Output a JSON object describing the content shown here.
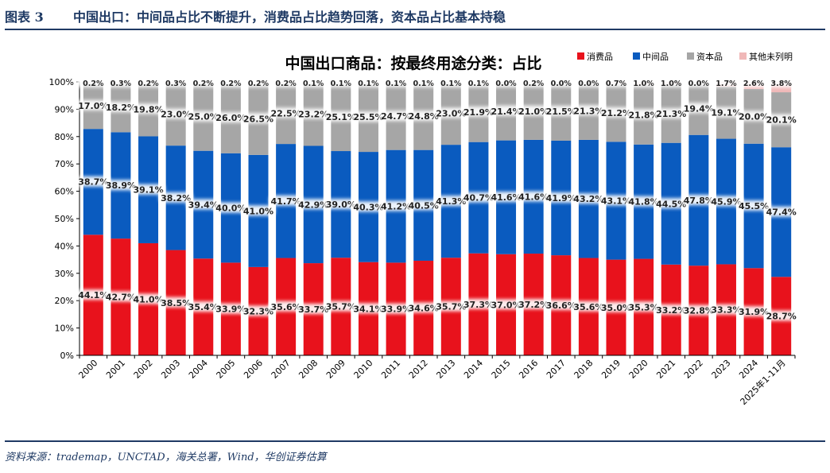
{
  "header": {
    "figure_label": "图表 3",
    "figure_title": "中国出口：中间品占比不断提升，消费品占比趋势回落，资本品占比基本持稳"
  },
  "footer": {
    "source": "资料来源：trademap，UNCTAD，海关总署，Wind，华创证券估算"
  },
  "colors": {
    "consumer": "#e8121c",
    "intermediate": "#0a5bbf",
    "capital": "#a6a6a6",
    "other": "#f0b8b8",
    "header_text": "#1f3a64"
  },
  "chart_data": {
    "type": "bar",
    "stacked": true,
    "title": "中国出口商品：按最终用途分类：占比",
    "categories": [
      "2000",
      "2001",
      "2002",
      "2003",
      "2004",
      "2005",
      "2006",
      "2007",
      "2008",
      "2009",
      "2010",
      "2011",
      "2012",
      "2013",
      "2014",
      "2015",
      "2016",
      "2017",
      "2018",
      "2019",
      "2020",
      "2021",
      "2022",
      "2023",
      "2024",
      "2025年1-11月"
    ],
    "series": [
      {
        "name": "消费品",
        "values": [
          44.1,
          42.7,
          41.0,
          38.5,
          35.4,
          33.9,
          32.3,
          35.6,
          33.7,
          35.7,
          34.1,
          33.9,
          34.6,
          35.7,
          37.3,
          37.0,
          37.2,
          36.6,
          35.6,
          35.0,
          35.3,
          33.2,
          32.8,
          33.3,
          31.9,
          28.7
        ],
        "labels": [
          "44.1%",
          "42.7%",
          "41.0%",
          "38.5%",
          "35.4%",
          "33.9%",
          "32.3%",
          "35.6%",
          "33.7%",
          "35.7%",
          "34.1%",
          "33.9%",
          "34.6%",
          "35.7%",
          "37.3%",
          "37.0%",
          "37.2%",
          "36.6%",
          "35.6%",
          "35.0%",
          "35.3%",
          "33.2%",
          "32.8%",
          "33.3%",
          "31.9%",
          "28.7%"
        ]
      },
      {
        "name": "中间品",
        "values": [
          38.7,
          38.9,
          39.1,
          38.2,
          39.4,
          40.0,
          41.0,
          41.7,
          42.9,
          39.0,
          40.3,
          41.2,
          40.5,
          41.3,
          40.7,
          41.6,
          41.6,
          41.9,
          43.2,
          43.1,
          41.8,
          44.5,
          47.8,
          45.9,
          45.5,
          47.4
        ],
        "labels": [
          "38.7%",
          "38.9%",
          "39.1%",
          "38.2%",
          "39.4%",
          "40.0%",
          "41.0%",
          "41.7%",
          "42.9%",
          "39.0%",
          "40.3%",
          "41.2%",
          "40.5%",
          "41.3%",
          "40.7%",
          "41.6%",
          "41.6%",
          "41.9%",
          "43.2%",
          "43.1%",
          "41.8%",
          "44.5%",
          "47.8%",
          "45.9%",
          "45.5%",
          "47.4%"
        ]
      },
      {
        "name": "资本品",
        "values": [
          17.0,
          18.2,
          19.8,
          23.0,
          25.0,
          26.0,
          26.5,
          22.5,
          23.2,
          25.1,
          25.5,
          24.7,
          24.8,
          23.0,
          21.9,
          21.4,
          21.0,
          21.5,
          21.3,
          21.2,
          21.8,
          21.3,
          19.4,
          19.1,
          20.0,
          20.1
        ],
        "labels": [
          "17.0%",
          "18.2%",
          "19.8%",
          "23.0%",
          "25.0%",
          "26.0%",
          "26.5%",
          "22.5%",
          "23.2%",
          "25.1%",
          "25.5%",
          "24.7%",
          "24.8%",
          "23.0%",
          "21.9%",
          "21.4%",
          "21.0%",
          "21.5%",
          "21.3%",
          "21.2%",
          "21.8%",
          "21.3%",
          "19.4%",
          "19.1%",
          "20.0%",
          "20.1%"
        ]
      },
      {
        "name": "其他未列明",
        "values": [
          0.2,
          0.3,
          0.2,
          0.3,
          0.2,
          0.2,
          0.2,
          0.2,
          0.1,
          0.1,
          0.1,
          0.1,
          0.1,
          0.1,
          0.1,
          0.0,
          0.2,
          0.0,
          0.0,
          0.7,
          1.0,
          1.0,
          0.0,
          1.7,
          2.6,
          3.8
        ],
        "labels": [
          "0.2%",
          "0.3%",
          "0.2%",
          "0.3%",
          "0.2%",
          "0.2%",
          "0.2%",
          "0.2%",
          "0.1%",
          "0.1%",
          "0.1%",
          "0.1%",
          "0.1%",
          "0.1%",
          "0.1%",
          "0.0%",
          "0.2%",
          "0.0%",
          "0.0%",
          "0.7%",
          "1.0%",
          "1.0%",
          "0.0%",
          "1.7%",
          "2.6%",
          "3.8%"
        ]
      }
    ],
    "ylim": [
      0,
      100
    ],
    "yticks": [
      "0%",
      "10%",
      "20%",
      "30%",
      "40%",
      "50%",
      "60%",
      "70%",
      "80%",
      "90%",
      "100%"
    ],
    "legend_position": "top-right",
    "grid": false
  }
}
